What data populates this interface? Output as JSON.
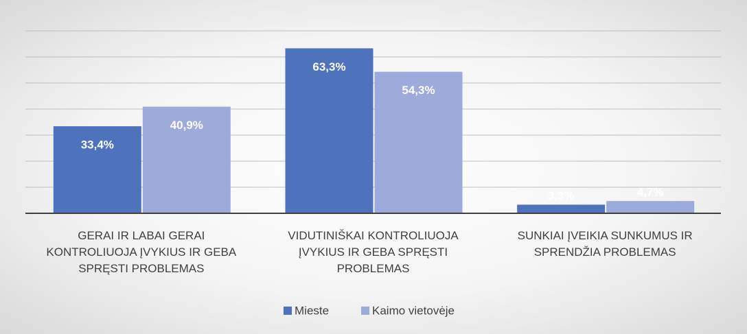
{
  "chart_data": {
    "type": "bar",
    "categories": [
      "GERAI IR LABAI GERAI KONTROLIUOJA ĮVYKIUS IR GEBA SPRĘSTI PROBLEMAS",
      "VIDUTINIŠKAI KONTROLIUOJA ĮVYKIUS IR GEBA SPRĘSTI PROBLEMAS",
      "SUNKIAI ĮVEIKIA SUNKUMUS IR SPRENDŽIA PROBLEMAS"
    ],
    "series": [
      {
        "name": "Mieste",
        "color": "#4f72bd",
        "values": [
          33.4,
          63.3,
          3.3
        ],
        "value_labels": [
          "33,4%",
          "63,3%",
          "3,3%"
        ]
      },
      {
        "name": "Kaimo vietovėje",
        "color": "#9dabdb",
        "values": [
          40.9,
          54.3,
          4.7
        ],
        "value_labels": [
          "40,9%",
          "54,3%",
          "4,7%"
        ]
      }
    ],
    "ylim": [
      0,
      70
    ],
    "yticks": [
      0,
      10,
      20,
      30,
      40,
      50,
      60,
      70
    ],
    "grid": true,
    "legend": "bottom"
  }
}
